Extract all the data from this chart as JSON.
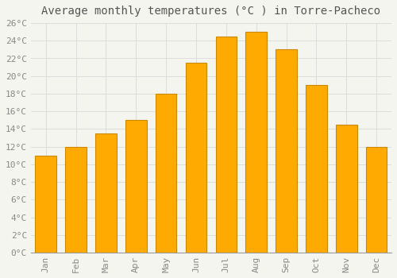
{
  "title": "Average monthly temperatures (°C ) in Torre-Pacheco",
  "months": [
    "Jan",
    "Feb",
    "Mar",
    "Apr",
    "May",
    "Jun",
    "Jul",
    "Aug",
    "Sep",
    "Oct",
    "Nov",
    "Dec"
  ],
  "values": [
    11,
    12,
    13.5,
    15,
    18,
    21.5,
    24.5,
    25,
    23,
    19,
    14.5,
    12
  ],
  "bar_color": "#FFAA00",
  "bar_edge_color": "#CC8800",
  "background_color": "#F5F5F0",
  "grid_color": "#DDDDDD",
  "text_color": "#888888",
  "title_color": "#555555",
  "ylim": [
    0,
    26
  ],
  "ytick_step": 2,
  "title_fontsize": 10,
  "tick_fontsize": 8,
  "tick_font": "monospace"
}
